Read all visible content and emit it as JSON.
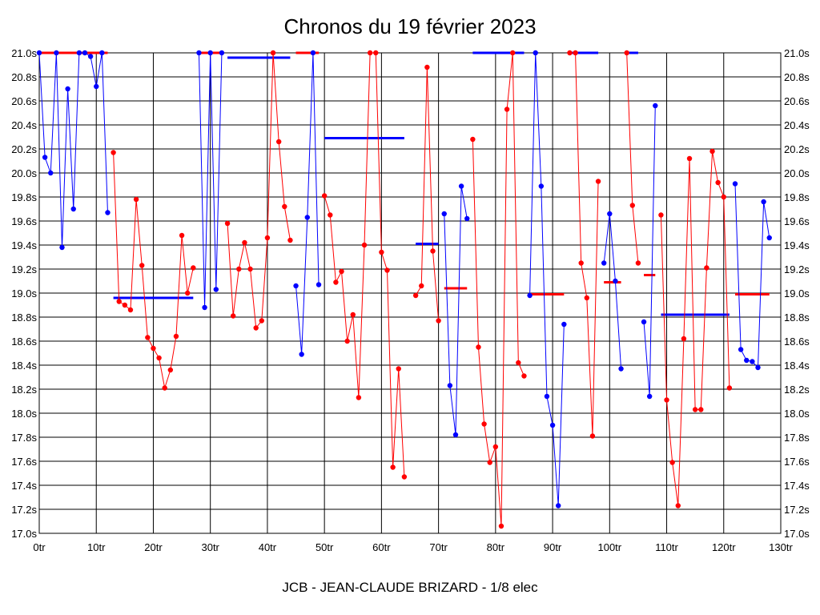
{
  "chart_data": {
    "type": "line",
    "title": "Chronos du 19 février 2023",
    "footer": "JCB - JEAN-CLAUDE BRIZARD - 1/8 elec",
    "xlim": [
      0,
      130
    ],
    "ylim": [
      17.0,
      21.0
    ],
    "grid": true,
    "x_ticks": [
      0,
      10,
      20,
      30,
      40,
      50,
      60,
      70,
      80,
      90,
      100,
      110,
      120,
      130
    ],
    "x_tick_labels": [
      "0tr",
      "10tr",
      "20tr",
      "30tr",
      "40tr",
      "50tr",
      "60tr",
      "70tr",
      "80tr",
      "90tr",
      "100tr",
      "110tr",
      "120tr",
      "130tr"
    ],
    "y_ticks": [
      17.0,
      17.2,
      17.4,
      17.6,
      17.8,
      18.0,
      18.2,
      18.4,
      18.6,
      18.8,
      19.0,
      19.2,
      19.4,
      19.6,
      19.8,
      20.0,
      20.2,
      20.4,
      20.6,
      20.8,
      21.0
    ],
    "y_tick_labels": [
      "17.0s",
      "17.2s",
      "17.4s",
      "17.6s",
      "17.8s",
      "18.0s",
      "18.2s",
      "18.4s",
      "18.6s",
      "18.8s",
      "19.0s",
      "19.2s",
      "19.4s",
      "19.6s",
      "19.8s",
      "20.0s",
      "20.2s",
      "20.4s",
      "20.6s",
      "20.8s",
      "21.0s"
    ],
    "colors": {
      "blue": "#0000ff",
      "red": "#ff0000"
    },
    "series": [
      {
        "color": "#0000ff",
        "points": [
          [
            0,
            21.0
          ],
          [
            1,
            20.13
          ],
          [
            2,
            20.0
          ],
          [
            3,
            21.0
          ],
          [
            4,
            19.38
          ],
          [
            5,
            20.7
          ],
          [
            6,
            19.7
          ],
          [
            7,
            21.0
          ],
          [
            8,
            21.0
          ],
          [
            9,
            20.97
          ],
          [
            10,
            20.72
          ],
          [
            11,
            21.0
          ],
          [
            12,
            19.67
          ]
        ]
      },
      {
        "color": "#ff0000",
        "points": [
          [
            13,
            20.17
          ],
          [
            14,
            18.93
          ],
          [
            15,
            18.9
          ],
          [
            16,
            18.86
          ],
          [
            17,
            19.78
          ],
          [
            18,
            19.23
          ],
          [
            19,
            18.63
          ],
          [
            20,
            18.54
          ],
          [
            21,
            18.46
          ],
          [
            22,
            18.21
          ],
          [
            23,
            18.36
          ],
          [
            24,
            18.64
          ],
          [
            25,
            19.48
          ],
          [
            26,
            19.0
          ],
          [
            27,
            19.21
          ]
        ]
      },
      {
        "color": "#0000ff",
        "points": [
          [
            28,
            21.0
          ],
          [
            29,
            18.88
          ],
          [
            30,
            21.0
          ],
          [
            31,
            19.03
          ],
          [
            32,
            21.0
          ]
        ]
      },
      {
        "color": "#ff0000",
        "points": [
          [
            33,
            19.58
          ],
          [
            34,
            18.81
          ],
          [
            35,
            19.2
          ],
          [
            36,
            19.42
          ],
          [
            37,
            19.2
          ],
          [
            38,
            18.71
          ],
          [
            39,
            18.77
          ],
          [
            40,
            19.46
          ],
          [
            41,
            21.0
          ],
          [
            42,
            20.26
          ],
          [
            43,
            19.72
          ],
          [
            44,
            19.44
          ]
        ]
      },
      {
        "color": "#0000ff",
        "points": [
          [
            45,
            19.06
          ],
          [
            46,
            18.49
          ],
          [
            47,
            19.63
          ],
          [
            48,
            21.0
          ],
          [
            49,
            19.07
          ]
        ]
      },
      {
        "color": "#ff0000",
        "points": [
          [
            50,
            19.81
          ],
          [
            51,
            19.65
          ],
          [
            52,
            19.09
          ],
          [
            53,
            19.18
          ],
          [
            54,
            18.6
          ],
          [
            55,
            18.82
          ],
          [
            56,
            18.13
          ],
          [
            57,
            19.4
          ],
          [
            58,
            21.0
          ],
          [
            59,
            21.0
          ],
          [
            60,
            19.34
          ],
          [
            61,
            19.19
          ],
          [
            62,
            17.55
          ],
          [
            63,
            18.37
          ],
          [
            64,
            17.47
          ]
        ]
      },
      {
        "color": "#ff0000",
        "points": [
          [
            66,
            18.98
          ],
          [
            67,
            19.06
          ],
          [
            68,
            20.88
          ],
          [
            69,
            19.35
          ],
          [
            70,
            18.77
          ]
        ]
      },
      {
        "color": "#0000ff",
        "points": [
          [
            71,
            19.66
          ],
          [
            72,
            18.23
          ],
          [
            73,
            17.82
          ],
          [
            74,
            19.89
          ],
          [
            75,
            19.62
          ]
        ]
      },
      {
        "color": "#ff0000",
        "points": [
          [
            76,
            20.28
          ],
          [
            77,
            18.55
          ],
          [
            78,
            17.91
          ],
          [
            79,
            17.59
          ],
          [
            80,
            17.72
          ],
          [
            81,
            17.06
          ],
          [
            82,
            20.53
          ],
          [
            83,
            21.0
          ],
          [
            84,
            18.42
          ],
          [
            85,
            18.31
          ]
        ]
      },
      {
        "color": "#0000ff",
        "points": [
          [
            86,
            18.98
          ],
          [
            87,
            21.0
          ],
          [
            88,
            19.89
          ],
          [
            89,
            18.14
          ],
          [
            90,
            17.9
          ],
          [
            91,
            17.23
          ],
          [
            92,
            18.74
          ]
        ]
      },
      {
        "color": "#ff0000",
        "points": [
          [
            93,
            21.0
          ],
          [
            94,
            21.0
          ],
          [
            95,
            19.25
          ],
          [
            96,
            18.96
          ],
          [
            97,
            17.81
          ],
          [
            98,
            19.93
          ]
        ]
      },
      {
        "color": "#0000ff",
        "points": [
          [
            99,
            19.25
          ],
          [
            100,
            19.66
          ],
          [
            101,
            19.1
          ],
          [
            102,
            18.37
          ]
        ]
      },
      {
        "color": "#ff0000",
        "points": [
          [
            103,
            21.0
          ],
          [
            104,
            19.73
          ],
          [
            105,
            19.25
          ]
        ]
      },
      {
        "color": "#0000ff",
        "points": [
          [
            106,
            18.76
          ],
          [
            107,
            18.14
          ],
          [
            108,
            20.56
          ]
        ]
      },
      {
        "color": "#ff0000",
        "points": [
          [
            109,
            19.65
          ],
          [
            110,
            18.11
          ],
          [
            111,
            17.59
          ],
          [
            112,
            17.23
          ],
          [
            113,
            18.62
          ],
          [
            114,
            20.12
          ],
          [
            115,
            18.03
          ],
          [
            116,
            18.03
          ],
          [
            117,
            19.21
          ],
          [
            118,
            20.18
          ],
          [
            119,
            19.92
          ],
          [
            120,
            19.8
          ],
          [
            121,
            18.21
          ]
        ]
      },
      {
        "color": "#0000ff",
        "points": [
          [
            122,
            19.91
          ],
          [
            123,
            18.53
          ],
          [
            124,
            18.44
          ],
          [
            125,
            18.43
          ],
          [
            126,
            18.38
          ],
          [
            127,
            19.76
          ],
          [
            128,
            19.46
          ]
        ]
      }
    ],
    "reference_lines": [
      {
        "color": "#ff0000",
        "x1": 0,
        "x2": 12,
        "y": 21.0
      },
      {
        "color": "#0000ff",
        "x1": 13,
        "x2": 27,
        "y": 18.96
      },
      {
        "color": "#ff0000",
        "x1": 28,
        "x2": 32,
        "y": 21.0
      },
      {
        "color": "#0000ff",
        "x1": 33,
        "x2": 44,
        "y": 20.96
      },
      {
        "color": "#ff0000",
        "x1": 45,
        "x2": 49,
        "y": 21.0
      },
      {
        "color": "#0000ff",
        "x1": 50,
        "x2": 64,
        "y": 20.29
      },
      {
        "color": "#0000ff",
        "x1": 66,
        "x2": 70,
        "y": 19.41
      },
      {
        "color": "#ff0000",
        "x1": 71,
        "x2": 75,
        "y": 19.04
      },
      {
        "color": "#0000ff",
        "x1": 76,
        "x2": 85,
        "y": 21.0
      },
      {
        "color": "#ff0000",
        "x1": 86,
        "x2": 92,
        "y": 18.99
      },
      {
        "color": "#0000ff",
        "x1": 93,
        "x2": 98,
        "y": 21.0
      },
      {
        "color": "#ff0000",
        "x1": 99,
        "x2": 102,
        "y": 19.09
      },
      {
        "color": "#0000ff",
        "x1": 103,
        "x2": 105,
        "y": 21.0
      },
      {
        "color": "#ff0000",
        "x1": 106,
        "x2": 108,
        "y": 19.15
      },
      {
        "color": "#0000ff",
        "x1": 109,
        "x2": 121,
        "y": 18.82
      },
      {
        "color": "#ff0000",
        "x1": 122,
        "x2": 128,
        "y": 18.99
      }
    ]
  }
}
